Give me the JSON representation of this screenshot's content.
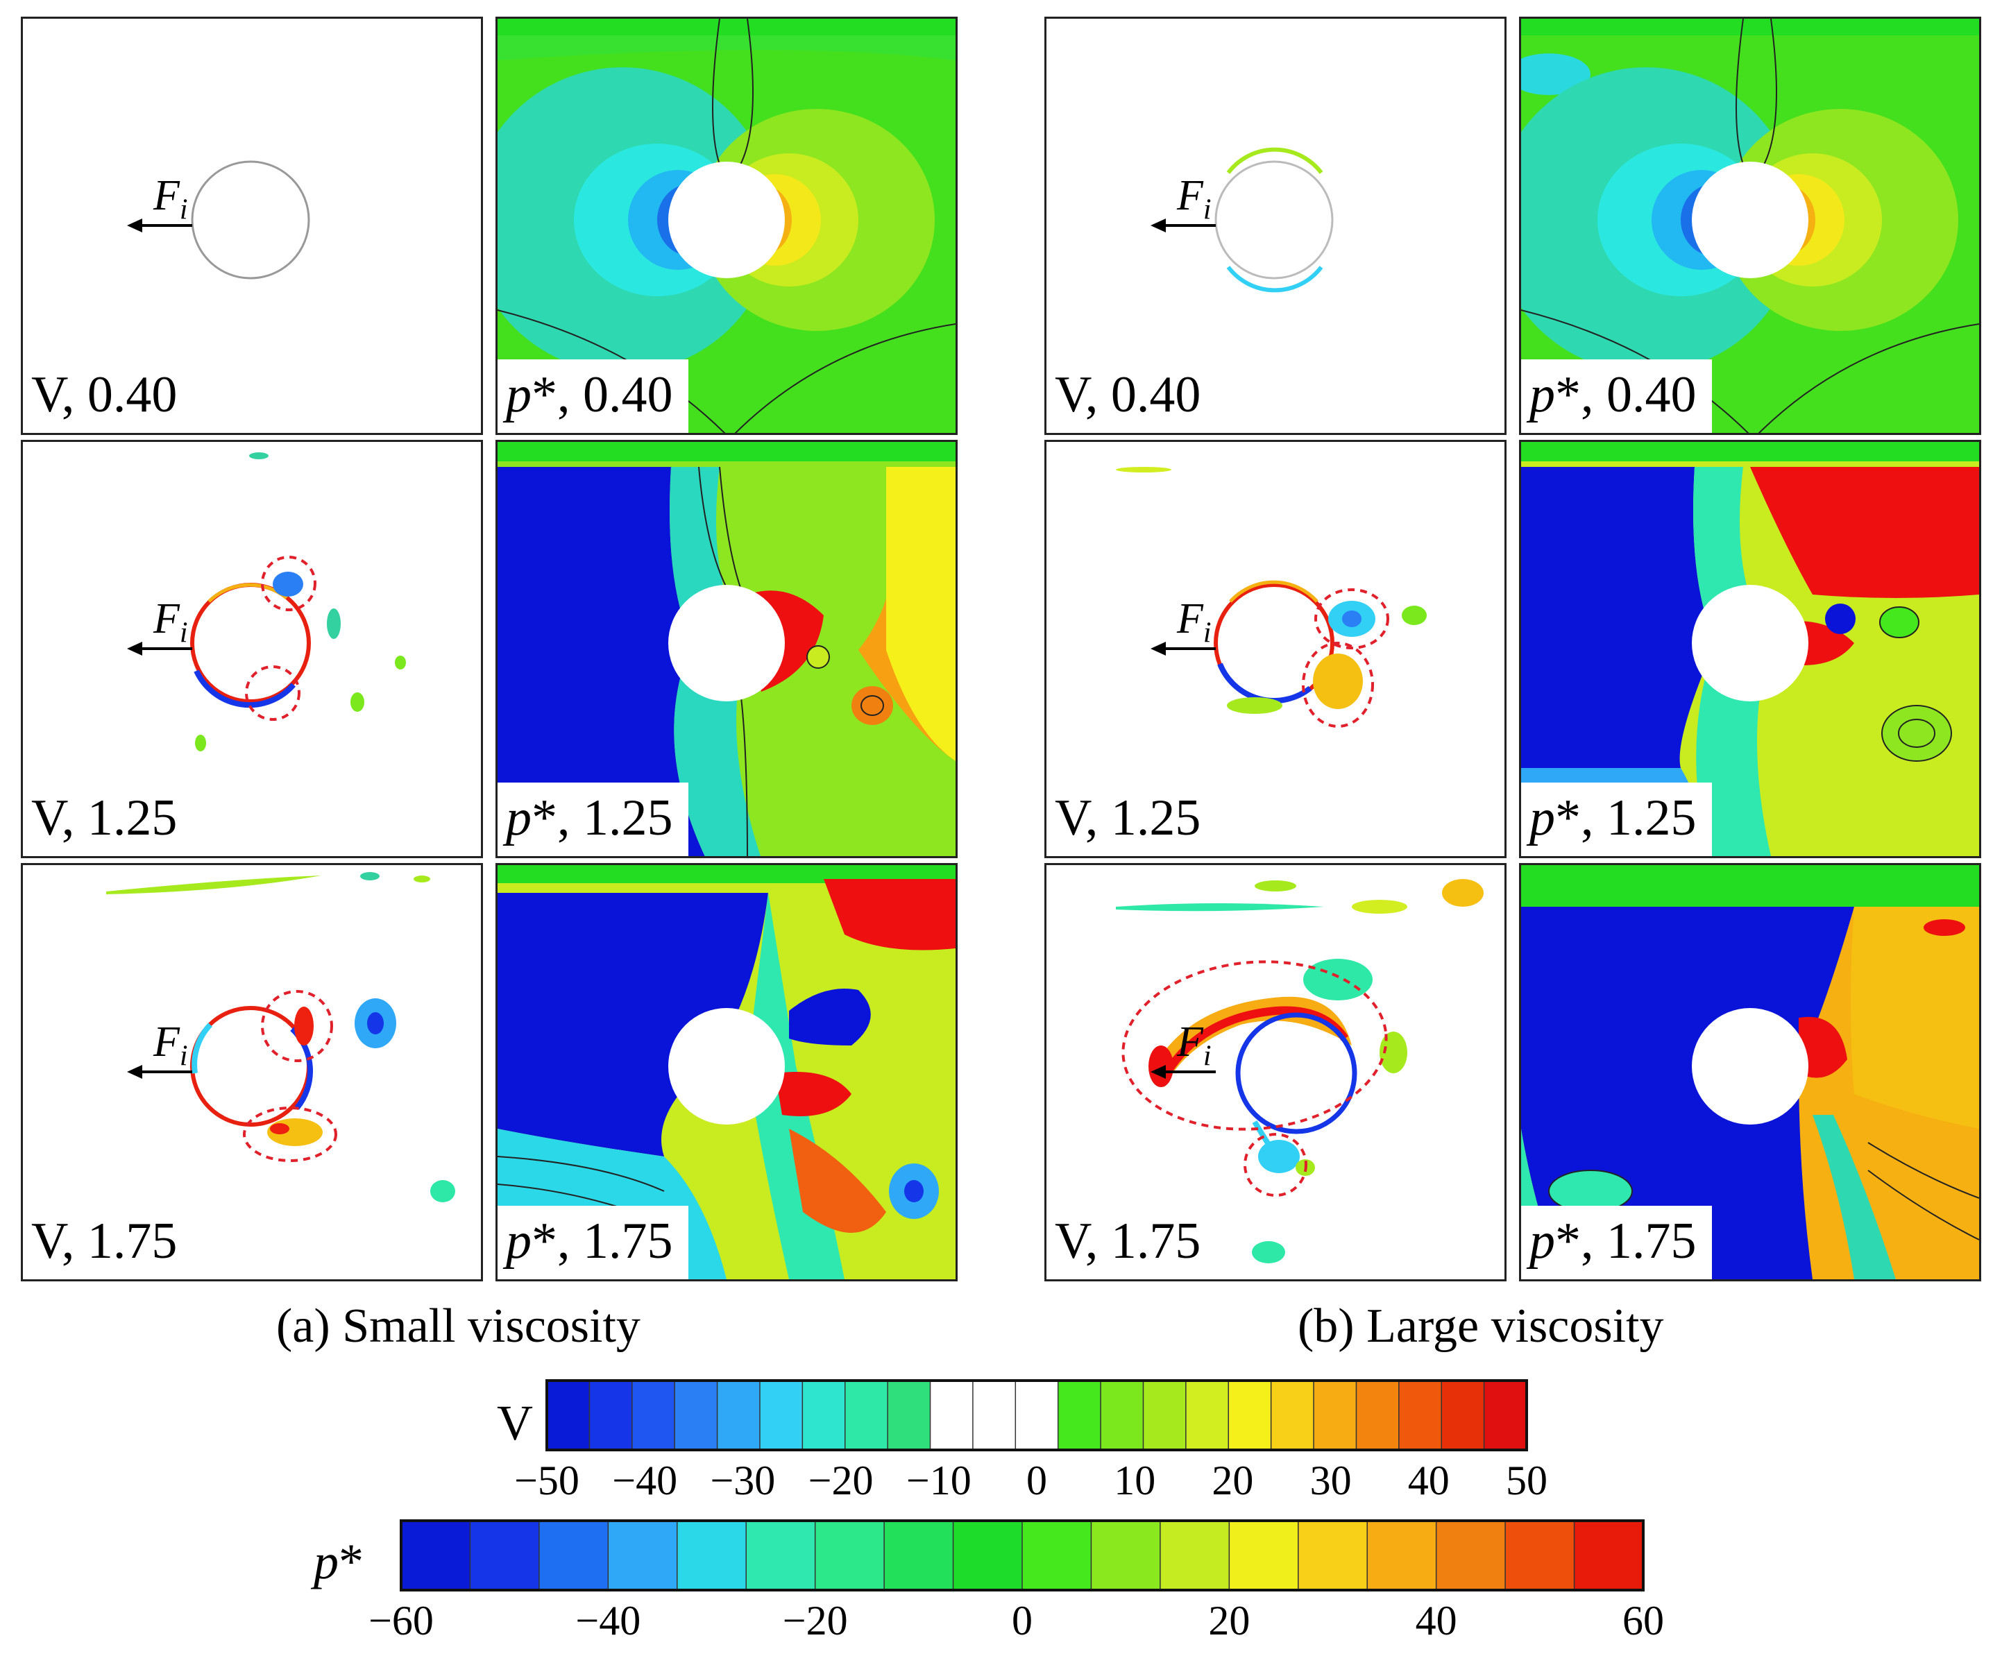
{
  "panels": {
    "small": [
      {
        "row": 0,
        "v_label": "V, 0.40",
        "p_label": "*, 0.40",
        "p_symbol": "p"
      },
      {
        "row": 1,
        "v_label": "V, 1.25",
        "p_label": "*, 1.25",
        "p_symbol": "p"
      },
      {
        "row": 2,
        "v_label": "V, 1.75",
        "p_label": "*, 1.75",
        "p_symbol": "p"
      }
    ],
    "large": [
      {
        "row": 0,
        "v_label": "V, 0.40",
        "p_label": "*, 0.40",
        "p_symbol": "p"
      },
      {
        "row": 1,
        "v_label": "V, 1.25",
        "p_label": "*, 1.25",
        "p_symbol": "p"
      },
      {
        "row": 2,
        "v_label": "V, 1.75",
        "p_label": "*, 1.75",
        "p_symbol": "p"
      }
    ]
  },
  "force_label": {
    "symbol": "F",
    "subscript": "i"
  },
  "captions": {
    "small": "(a) Small viscosity",
    "large": "(b) Large viscosity"
  },
  "colorbars": {
    "v": {
      "name": "V",
      "ticks": [
        "−50",
        "−40",
        "−30",
        "−20",
        "−10",
        "0",
        "10",
        "20",
        "30",
        "40",
        "50"
      ],
      "colors": [
        "#0a1bd8",
        "#1436e8",
        "#1f55f0",
        "#2a7ff5",
        "#2fa8f7",
        "#33d0f5",
        "#2ee6d0",
        "#2de8a6",
        "#2edf7c",
        "#ffffff",
        "#ffffff",
        "#ffffff",
        "#44e81c",
        "#7ae81c",
        "#a6ea1e",
        "#d2ee20",
        "#f5ef1a",
        "#f8d018",
        "#f6ac12",
        "#f3850e",
        "#f0580b",
        "#e83008",
        "#e01010"
      ]
    },
    "p": {
      "name": "p",
      "name_suffix": "*",
      "ticks": [
        "−60",
        "−40",
        "−20",
        "0",
        "20",
        "40",
        "60"
      ],
      "colors": [
        "#0a1bd8",
        "#1436e8",
        "#1f6ff2",
        "#2fa8f7",
        "#2ad8e8",
        "#2ee8b0",
        "#2de88a",
        "#22e05a",
        "#1edc2a",
        "#44e81c",
        "#8ae81e",
        "#c4ec20",
        "#f0ef1c",
        "#f8d018",
        "#f6ac12",
        "#f08010",
        "#ee500c",
        "#e81a0a"
      ]
    }
  },
  "colors": {
    "blue": "#0a14d8",
    "green": "#22dd22",
    "red": "#ee1010",
    "yellow": "#f5ef1a",
    "dash": "#e0202a"
  }
}
